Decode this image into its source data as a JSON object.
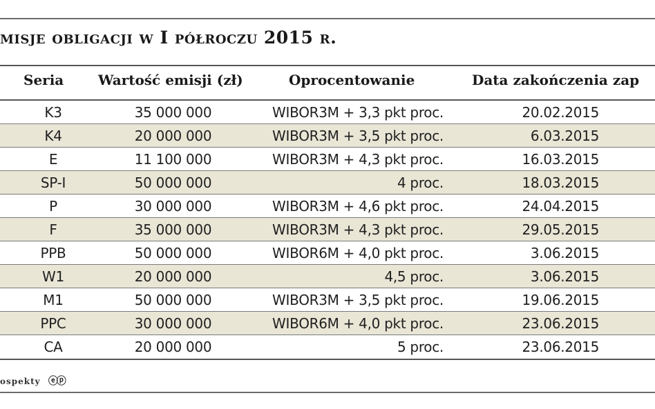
{
  "title": "misje obligacji w I półroczu 2015 r.",
  "table": {
    "columns": {
      "seria": "Seria",
      "wartosc": "Wartość emisji (zł)",
      "oprocentowanie": "Oprocentowanie",
      "data": "Data zakończenia zap"
    },
    "rows": [
      {
        "seria": "K3",
        "wartosc": "35 000 000",
        "oprocentowanie": "WIBOR3M + 3,3 pkt proc.",
        "data": "20.02.2015"
      },
      {
        "seria": "K4",
        "wartosc": "20 000 000",
        "oprocentowanie": "WIBOR3M + 3,5 pkt proc.",
        "data": "6.03.2015"
      },
      {
        "seria": "E",
        "wartosc": "11 100 000",
        "oprocentowanie": "WIBOR3M + 4,3 pkt proc.",
        "data": "16.03.2015"
      },
      {
        "seria": "SP-I",
        "wartosc": "50 000 000",
        "oprocentowanie": "4 proc.",
        "data": "18.03.2015"
      },
      {
        "seria": "P",
        "wartosc": "30 000 000",
        "oprocentowanie": "WIBOR3M + 4,6 pkt proc.",
        "data": "24.04.2015"
      },
      {
        "seria": "F",
        "wartosc": "35 000 000",
        "oprocentowanie": "WIBOR3M + 4,3 pkt proc.",
        "data": "29.05.2015"
      },
      {
        "seria": "PPB",
        "wartosc": "50 000 000",
        "oprocentowanie": "WIBOR6M + 4,0 pkt proc.",
        "data": "3.06.2015"
      },
      {
        "seria": "W1",
        "wartosc": "20 000 000",
        "oprocentowanie": "4,5 proc.",
        "data": "3.06.2015"
      },
      {
        "seria": "M1",
        "wartosc": "50 000 000",
        "oprocentowanie": "WIBOR3M + 3,5 pkt proc.",
        "data": "19.06.2015"
      },
      {
        "seria": "PPC",
        "wartosc": "30 000 000",
        "oprocentowanie": "WIBOR6M + 4,0 pkt proc.",
        "data": "23.06.2015"
      },
      {
        "seria": "CA",
        "wartosc": "20 000 000",
        "oprocentowanie": "5 proc.",
        "data": "23.06.2015"
      }
    ]
  },
  "source": {
    "label": "ospekty",
    "logo_text": "ⓔⓟ"
  },
  "colors": {
    "alt_row": "#e9e6d6",
    "rule": "#555555"
  }
}
